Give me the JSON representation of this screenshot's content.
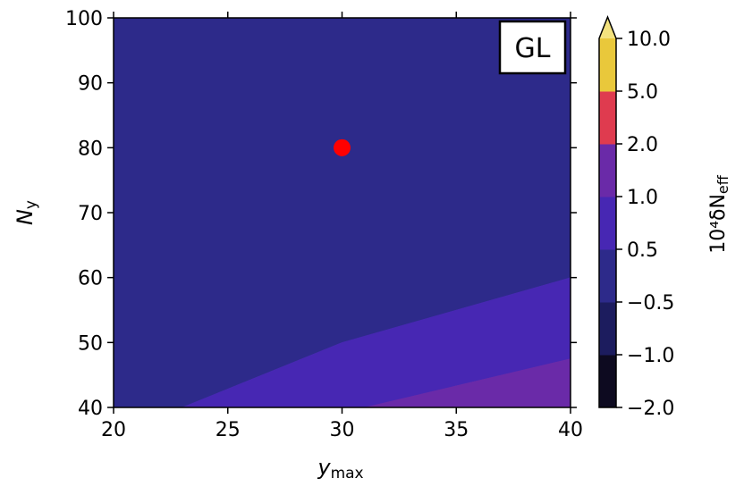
{
  "chart_data": {
    "type": "contour",
    "annotation": "GL",
    "xlabel": "y",
    "xlabel_sub": "max",
    "ylabel": "N",
    "ylabel_sub": "y",
    "xlim": [
      20,
      40
    ],
    "ylim": [
      40,
      100
    ],
    "xticks": [
      "20",
      "25",
      "30",
      "35",
      "40"
    ],
    "yticks": [
      "40",
      "50",
      "60",
      "70",
      "80",
      "90",
      "100"
    ],
    "marker": {
      "x": 30,
      "y": 80,
      "color": "#ff0000"
    },
    "regions": [
      {
        "level": "-0.5 to 0.5",
        "color": "#2d2a8a",
        "polygon": [
          [
            20,
            40
          ],
          [
            20,
            100
          ],
          [
            40,
            100
          ],
          [
            40,
            60
          ],
          [
            30,
            50
          ],
          [
            23,
            40
          ]
        ]
      },
      {
        "level": "0.5 to 1.0",
        "color": "#4727b3",
        "polygon": [
          [
            23,
            40
          ],
          [
            30,
            50
          ],
          [
            40,
            60
          ],
          [
            40,
            47.5
          ],
          [
            31,
            40
          ]
        ]
      },
      {
        "level": "1.0 to 2.0",
        "color": "#6a2aa8",
        "polygon": [
          [
            31,
            40
          ],
          [
            40,
            47.5
          ],
          [
            40,
            40
          ]
        ]
      }
    ],
    "colorbar": {
      "label": "10⁴δN",
      "label_sub": "eff",
      "extend": "max",
      "boundaries": [
        "−2.0",
        "−1.0",
        "−0.5",
        "0.5",
        "1.0",
        "2.0",
        "5.0",
        "10.0"
      ],
      "colors": [
        "#0d0a20",
        "#1c1c5e",
        "#2d2a8a",
        "#4727b3",
        "#6a2aa8",
        "#df3b4f",
        "#e9c83b",
        "#f3e27e"
      ]
    }
  }
}
